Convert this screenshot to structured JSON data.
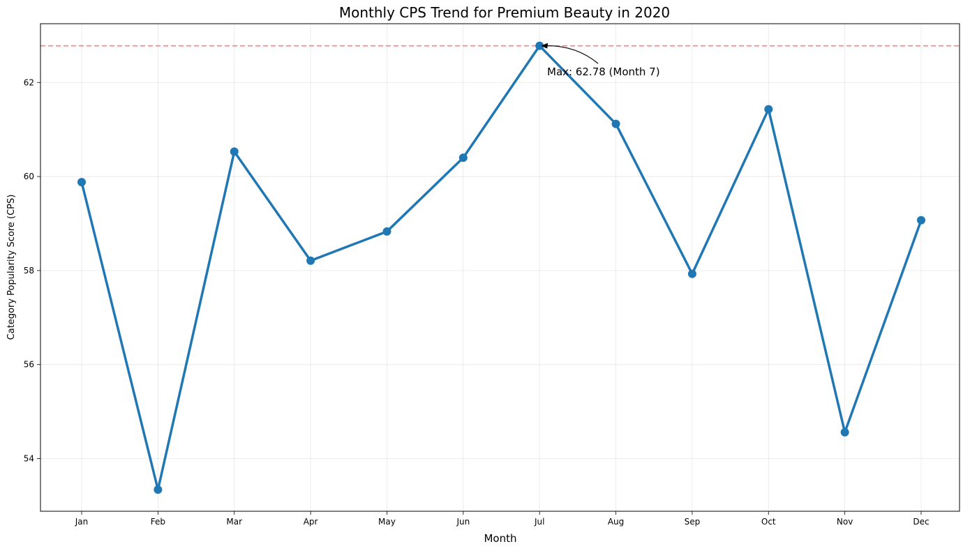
{
  "chart_data": {
    "type": "line",
    "title": "Monthly CPS Trend for Premium Beauty in 2020",
    "xlabel": "Month",
    "ylabel": "Category Popularity Score (CPS)",
    "categories": [
      "Jan",
      "Feb",
      "Mar",
      "Apr",
      "May",
      "Jun",
      "Jul",
      "Aug",
      "Sep",
      "Oct",
      "Nov",
      "Dec"
    ],
    "series": [
      {
        "values": [
          59.88,
          53.34,
          60.53,
          58.21,
          58.83,
          60.4,
          62.78,
          61.12,
          57.93,
          61.43,
          54.56,
          59.07
        ]
      }
    ],
    "ylim": [
      52.88,
      63.25
    ],
    "yticks": [
      54,
      56,
      58,
      60,
      62
    ],
    "grid": true,
    "reference_line": {
      "value": 62.78,
      "style": "dashed",
      "color": "#ff0000"
    },
    "annotation": {
      "text": "Max: 62.78 (Month 7)",
      "target_category": "Jul",
      "target_value": 62.78
    },
    "colors": {
      "series": "#1f77b4",
      "reference": "#ff0000"
    }
  }
}
